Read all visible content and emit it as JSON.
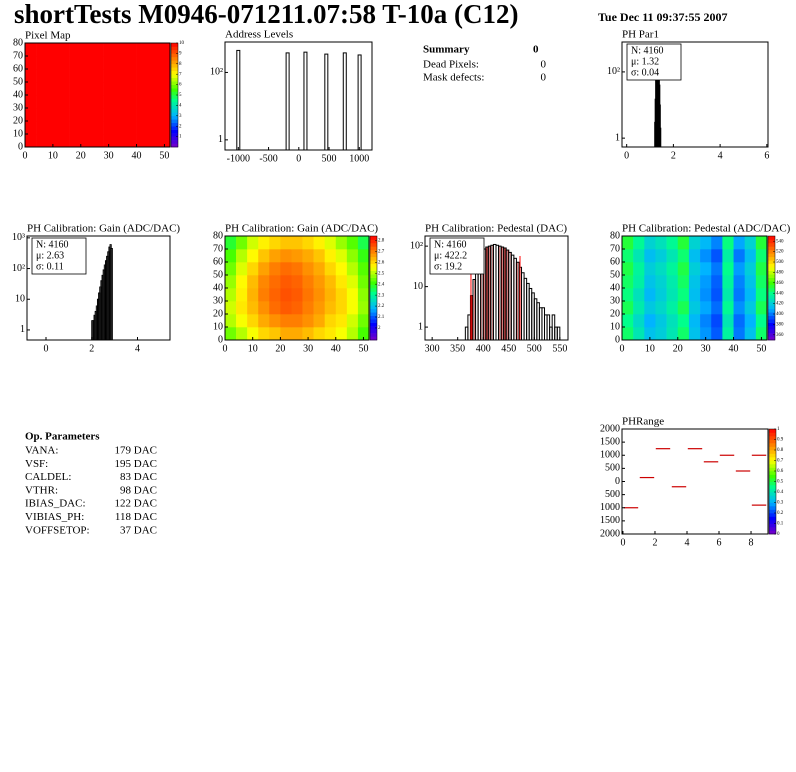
{
  "header": {
    "title": "shortTests M0946-071211.07:58 T-10a (C12)",
    "date": "Tue Dec 11 09:37:55 2007"
  },
  "summary": {
    "title": "Summary",
    "title_value": 0,
    "rows": [
      [
        "Dead Pixels:",
        0
      ],
      [
        "Mask defects:",
        0
      ]
    ]
  },
  "op_parameters": {
    "title": "Op. Parameters",
    "rows": [
      [
        "VANA:",
        "179 DAC"
      ],
      [
        "VSF:",
        "195 DAC"
      ],
      [
        "CALDEL:",
        "83 DAC"
      ],
      [
        "VTHR:",
        "98 DAC"
      ],
      [
        "IBIAS_DAC:",
        "122 DAC"
      ],
      [
        "VIBIAS_PH:",
        "118 DAC"
      ],
      [
        "VOFFSETOP:",
        "37 DAC"
      ]
    ]
  },
  "chart_data": [
    {
      "type": "heatmap",
      "title": "Pixel Map",
      "xlim": [
        0,
        52
      ],
      "ylim": [
        0,
        80
      ],
      "xticks": [
        0,
        10,
        20,
        30,
        40,
        50
      ],
      "yticks": [
        0,
        10,
        20,
        30,
        40,
        50,
        60,
        70,
        80
      ],
      "zlim": [
        0,
        10
      ],
      "zticks": [
        1,
        2,
        3,
        4,
        5,
        6,
        7,
        8,
        9,
        10
      ],
      "z": [
        [
          10,
          10,
          10,
          10,
          10,
          10,
          10,
          10,
          10,
          10,
          10,
          10,
          10
        ],
        [
          10,
          10,
          10,
          10,
          10,
          10,
          10,
          10,
          10,
          10,
          10,
          10,
          10
        ],
        [
          10,
          10,
          10,
          10,
          10,
          10,
          10,
          10,
          10,
          10,
          10,
          10,
          10
        ],
        [
          10,
          10,
          10,
          10,
          10,
          10,
          10,
          10,
          10,
          10,
          10,
          10,
          10
        ],
        [
          10,
          10,
          10,
          10,
          10,
          10,
          10,
          10,
          10,
          10,
          10,
          10,
          10
        ],
        [
          10,
          10,
          10,
          10,
          10,
          10,
          10,
          10,
          10,
          10,
          10,
          10,
          10
        ],
        [
          10,
          10,
          10,
          10,
          10,
          10,
          10,
          10,
          10,
          10,
          10,
          10,
          10
        ],
        [
          10,
          10,
          10,
          10,
          10,
          10,
          10,
          10,
          10,
          10,
          10,
          10,
          10
        ]
      ]
    },
    {
      "type": "spike",
      "title": "Address Levels",
      "logy": true,
      "color": "#000000",
      "xlim": [
        -1220,
        1210
      ],
      "ylim": [
        0.5,
        800
      ],
      "xticks": [
        -1000,
        -500,
        0,
        500,
        1000
      ],
      "yticks": [
        1,
        {
          "value": 100,
          "label": "10²"
        }
      ],
      "x": [
        -1000,
        -185,
        110,
        455,
        760,
        1005
      ],
      "values": [
        450,
        380,
        400,
        350,
        380,
        330
      ]
    },
    {
      "type": "histogram",
      "title": "PH Par1",
      "logy": true,
      "color": "#000000",
      "xlim": [
        -0.2,
        6.05
      ],
      "ylim": [
        0.54,
        800
      ],
      "xticks": [
        0,
        2,
        4,
        6
      ],
      "yticks": [
        1,
        {
          "value": 100,
          "label": "10²"
        }
      ],
      "stats": [
        "N: 4160",
        "μ: 1.32",
        "σ: 0.04"
      ],
      "stats_colors": [
        "#000000",
        "#000000",
        "#000000"
      ],
      "bins": [
        1.2,
        1.22,
        1.24,
        1.26,
        1.28,
        1.3,
        1.32,
        1.34,
        1.36,
        1.38,
        1.4,
        1.42,
        1.44,
        1.46
      ],
      "values": [
        3,
        15,
        60,
        160,
        300,
        420,
        440,
        380,
        240,
        110,
        40,
        10,
        2
      ]
    },
    {
      "type": "histogram",
      "title": "PH Calibration: Gain (ADC/DAC)",
      "logy": true,
      "color": "#000000",
      "xlim": [
        -0.83,
        5.42
      ],
      "ylim": [
        0.47,
        1150
      ],
      "xticks": [
        0,
        2,
        4
      ],
      "yticks": [
        1,
        10,
        {
          "value": 100,
          "label": "10²"
        },
        {
          "value": 1000,
          "label": "10³"
        }
      ],
      "stats": [
        "N: 4160",
        "μ: 2.63",
        "σ: 0.11"
      ],
      "stats_colors": [
        "#000000",
        "#000000",
        "#000000"
      ],
      "bins": [
        2.0,
        2.05,
        2.1,
        2.15,
        2.2,
        2.25,
        2.3,
        2.35,
        2.4,
        2.45,
        2.5,
        2.55,
        2.6,
        2.65,
        2.7,
        2.75,
        2.8,
        2.85,
        2.9
      ],
      "values": [
        2,
        2,
        3,
        4,
        6,
        10,
        16,
        25,
        40,
        60,
        90,
        130,
        180,
        250,
        350,
        500,
        600,
        450
      ]
    },
    {
      "type": "heatmap",
      "title": "PH Calibration: Gain (ADC/DAC)",
      "xlim": [
        0,
        52
      ],
      "ylim": [
        0,
        80
      ],
      "xticks": [
        0,
        10,
        20,
        30,
        40,
        50
      ],
      "yticks": [
        0,
        10,
        20,
        30,
        40,
        50,
        60,
        70,
        80
      ],
      "zlim": [
        1.89,
        2.84
      ],
      "zticks": [
        2,
        2.1,
        2.2,
        2.3,
        2.4,
        2.5,
        2.6,
        2.7,
        2.8
      ],
      "z": [
        [
          2.45,
          2.5,
          2.55,
          2.6,
          2.62,
          2.65,
          2.65,
          2.63,
          2.6,
          2.58,
          2.55,
          2.5,
          2.42
        ],
        [
          2.5,
          2.55,
          2.6,
          2.65,
          2.68,
          2.7,
          2.7,
          2.68,
          2.65,
          2.6,
          2.58,
          2.52,
          2.45
        ],
        [
          2.52,
          2.58,
          2.63,
          2.68,
          2.72,
          2.74,
          2.73,
          2.7,
          2.67,
          2.63,
          2.6,
          2.55,
          2.48
        ],
        [
          2.5,
          2.57,
          2.64,
          2.7,
          2.73,
          2.75,
          2.74,
          2.71,
          2.68,
          2.64,
          2.6,
          2.55,
          2.47
        ],
        [
          2.48,
          2.56,
          2.63,
          2.69,
          2.72,
          2.74,
          2.73,
          2.7,
          2.67,
          2.63,
          2.58,
          2.53,
          2.45
        ],
        [
          2.45,
          2.53,
          2.6,
          2.66,
          2.7,
          2.72,
          2.71,
          2.68,
          2.65,
          2.6,
          2.56,
          2.5,
          2.43
        ],
        [
          2.42,
          2.5,
          2.56,
          2.62,
          2.66,
          2.68,
          2.67,
          2.65,
          2.62,
          2.57,
          2.53,
          2.47,
          2.4
        ],
        [
          2.38,
          2.45,
          2.52,
          2.57,
          2.6,
          2.62,
          2.62,
          2.6,
          2.57,
          2.53,
          2.48,
          2.43,
          2.36
        ]
      ]
    },
    {
      "type": "histogram",
      "title": "PH Calibration: Pedestal (DAC)",
      "logy": true,
      "color": "#000000",
      "hatch_color": "#aa0000",
      "marker_color": "#ff0000",
      "markers": [
        376,
        472
      ],
      "xlim": [
        286,
        566
      ],
      "ylim": [
        0.48,
        178
      ],
      "xticks": [
        300,
        350,
        400,
        450,
        500,
        550
      ],
      "yticks": [
        1,
        10,
        {
          "value": 100,
          "label": "10²"
        }
      ],
      "stats": [
        "N: 4160",
        "μ: 422.2",
        "σ: 19.2"
      ],
      "stats_colors": [
        "#000000",
        "#ff0000",
        "#ff0000"
      ],
      "bins": [
        365,
        370,
        375,
        380,
        385,
        390,
        395,
        400,
        405,
        410,
        415,
        420,
        425,
        430,
        435,
        440,
        445,
        450,
        455,
        460,
        465,
        470,
        475,
        480,
        485,
        490,
        495,
        500,
        505,
        510,
        515,
        520,
        525,
        530,
        535,
        540,
        545,
        550
      ],
      "values": [
        1,
        2,
        6,
        15,
        30,
        50,
        70,
        85,
        95,
        100,
        105,
        110,
        105,
        100,
        95,
        90,
        80,
        70,
        60,
        50,
        40,
        30,
        22,
        16,
        12,
        9,
        7,
        5,
        4,
        3,
        3,
        2,
        2,
        1,
        2,
        1,
        1
      ]
    },
    {
      "type": "heatmap",
      "title": "PH Calibration: Pedestal (ADC/DAC)",
      "xlim": [
        0,
        52
      ],
      "ylim": [
        0,
        80
      ],
      "xticks": [
        0,
        10,
        20,
        30,
        40,
        50
      ],
      "yticks": [
        0,
        10,
        20,
        30,
        40,
        50,
        60,
        70,
        80
      ],
      "zlim": [
        350,
        550
      ],
      "zticks": [
        360,
        380,
        400,
        420,
        440,
        460,
        480,
        500,
        520,
        540
      ],
      "z": [
        [
          445,
          430,
          415,
          420,
          430,
          445,
          415,
          405,
          395,
          435,
          400,
          415,
          445
        ],
        [
          440,
          425,
          410,
          418,
          428,
          440,
          412,
          402,
          392,
          430,
          398,
          410,
          440
        ],
        [
          448,
          432,
          418,
          424,
          434,
          448,
          418,
          408,
          398,
          438,
          404,
          418,
          448
        ],
        [
          442,
          428,
          412,
          420,
          430,
          442,
          414,
          404,
          394,
          432,
          400,
          412,
          442
        ],
        [
          446,
          434,
          416,
          422,
          432,
          446,
          416,
          406,
          396,
          436,
          402,
          416,
          446
        ],
        [
          450,
          436,
          420,
          426,
          436,
          450,
          420,
          410,
          400,
          440,
          406,
          420,
          450
        ],
        [
          444,
          430,
          414,
          420,
          430,
          444,
          414,
          404,
          394,
          434,
          400,
          414,
          444
        ],
        [
          452,
          438,
          422,
          428,
          438,
          452,
          422,
          412,
          402,
          442,
          408,
          422,
          452
        ]
      ]
    },
    {
      "type": "dash",
      "title": "PHRange",
      "color": "#cc0000",
      "xlim": [
        -0.06,
        9.06
      ],
      "ylim": [
        -2000,
        2000
      ],
      "xticks": [
        0,
        2,
        4,
        6,
        8
      ],
      "yticks": [
        2000,
        1500,
        1000,
        500,
        0,
        {
          "value": -500,
          "label": "500"
        },
        {
          "value": -1000,
          "label": "1000"
        },
        {
          "value": -1500,
          "label": "1500"
        },
        {
          "value": -2000,
          "label": "2000"
        }
      ],
      "zlim": [
        0,
        1
      ],
      "zticks": [
        0,
        0.1,
        0.2,
        0.3,
        0.4,
        0.5,
        0.6,
        0.7,
        0.8,
        0.9,
        1
      ],
      "x": [
        0.5,
        1.5,
        2.5,
        3.5,
        4.5,
        5.5,
        6.5,
        7.5,
        8.5,
        8.5
      ],
      "values": [
        -1000,
        150,
        1250,
        -200,
        1250,
        750,
        1000,
        400,
        1000,
        -900
      ]
    }
  ]
}
